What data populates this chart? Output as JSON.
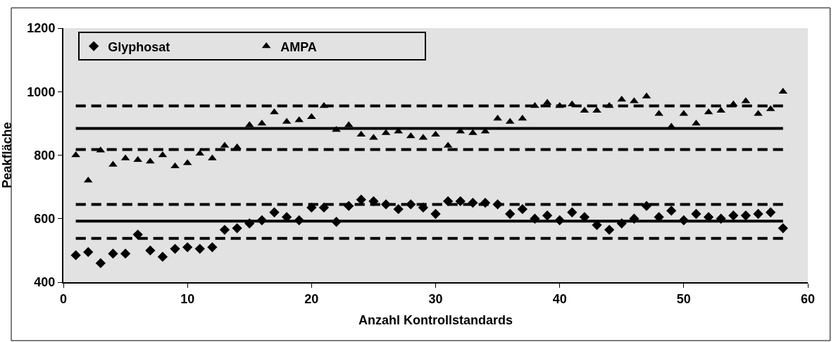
{
  "chart_data": {
    "type": "scatter",
    "xlabel": "Anzahl Kontrollstandards",
    "ylabel": "Peakfläche",
    "x": [
      1,
      2,
      3,
      4,
      5,
      6,
      7,
      8,
      9,
      10,
      11,
      12,
      13,
      14,
      15,
      16,
      17,
      18,
      19,
      20,
      21,
      22,
      23,
      24,
      25,
      26,
      27,
      28,
      29,
      30,
      31,
      32,
      33,
      34,
      35,
      36,
      37,
      38,
      39,
      40,
      41,
      42,
      43,
      44,
      45,
      46,
      47,
      48,
      49,
      50,
      51,
      52,
      53,
      54,
      55,
      56,
      57,
      58
    ],
    "series": [
      {
        "name": "Glyphosat",
        "color": "#000000",
        "marker": "diamond",
        "values": [
          485,
          495,
          460,
          490,
          490,
          550,
          500,
          480,
          505,
          510,
          505,
          510,
          565,
          570,
          585,
          595,
          620,
          605,
          595,
          635,
          635,
          590,
          640,
          660,
          655,
          645,
          630,
          645,
          635,
          615,
          655,
          655,
          650,
          650,
          645,
          615,
          630,
          600,
          610,
          595,
          620,
          605,
          580,
          565,
          585,
          600,
          640,
          605,
          625,
          595,
          615,
          605,
          600,
          610,
          610,
          615,
          620,
          570
        ]
      },
      {
        "name": "AMPA",
        "color": "#000000",
        "marker": "triangle",
        "values": [
          800,
          720,
          815,
          770,
          790,
          785,
          780,
          800,
          765,
          775,
          805,
          790,
          830,
          825,
          895,
          900,
          935,
          905,
          910,
          920,
          955,
          880,
          895,
          865,
          855,
          870,
          875,
          860,
          855,
          865,
          830,
          875,
          870,
          875,
          915,
          905,
          915,
          955,
          965,
          955,
          960,
          940,
          940,
          955,
          975,
          970,
          985,
          930,
          890,
          930,
          900,
          935,
          940,
          960,
          970,
          930,
          945,
          1000
        ]
      },
      {
        "type": "line",
        "color": "#000000",
        "line_style": "solid",
        "values": [
          884,
          884,
          884,
          884,
          884,
          884,
          884,
          884,
          884,
          884,
          884,
          884,
          884,
          884,
          884,
          884,
          884,
          884,
          884,
          884,
          884,
          884,
          884,
          884,
          884,
          884,
          884,
          884,
          884,
          884,
          884,
          884,
          884,
          884,
          884,
          884,
          884,
          884,
          884,
          884,
          884,
          884,
          884,
          884,
          884,
          884,
          884,
          884,
          884,
          884,
          884,
          884,
          884,
          884,
          884,
          884,
          884,
          884
        ]
      },
      {
        "type": "line",
        "color": "#000000",
        "line_style": "dashed",
        "values": [
          955,
          955,
          955,
          955,
          955,
          955,
          955,
          955,
          955,
          955,
          955,
          955,
          955,
          955,
          955,
          955,
          955,
          955,
          955,
          955,
          955,
          955,
          955,
          955,
          955,
          955,
          955,
          955,
          955,
          955,
          955,
          955,
          955,
          955,
          955,
          955,
          955,
          955,
          955,
          955,
          955,
          955,
          955,
          955,
          955,
          955,
          955,
          955,
          955,
          955,
          955,
          955,
          955,
          955,
          955,
          955,
          955,
          955
        ]
      },
      {
        "type": "line",
        "color": "#000000",
        "line_style": "dashed",
        "values": [
          818,
          818,
          818,
          818,
          818,
          818,
          818,
          818,
          818,
          818,
          818,
          818,
          818,
          818,
          818,
          818,
          818,
          818,
          818,
          818,
          818,
          818,
          818,
          818,
          818,
          818,
          818,
          818,
          818,
          818,
          818,
          818,
          818,
          818,
          818,
          818,
          818,
          818,
          818,
          818,
          818,
          818,
          818,
          818,
          818,
          818,
          818,
          818,
          818,
          818,
          818,
          818,
          818,
          818,
          818,
          818,
          818,
          818
        ]
      },
      {
        "type": "line",
        "color": "#000000",
        "line_style": "solid",
        "values": [
          592,
          592,
          592,
          592,
          592,
          592,
          592,
          592,
          592,
          592,
          592,
          592,
          592,
          592,
          592,
          592,
          592,
          592,
          592,
          592,
          592,
          592,
          592,
          592,
          592,
          592,
          592,
          592,
          592,
          592,
          592,
          592,
          592,
          592,
          592,
          592,
          592,
          592,
          592,
          592,
          592,
          592,
          592,
          592,
          592,
          592,
          592,
          592,
          592,
          592,
          592,
          592,
          592,
          592,
          592,
          592,
          592,
          592
        ]
      },
      {
        "type": "line",
        "color": "#000000",
        "line_style": "dashed",
        "values": [
          645,
          645,
          645,
          645,
          645,
          645,
          645,
          645,
          645,
          645,
          645,
          645,
          645,
          645,
          645,
          645,
          645,
          645,
          645,
          645,
          645,
          645,
          645,
          645,
          645,
          645,
          645,
          645,
          645,
          645,
          645,
          645,
          645,
          645,
          645,
          645,
          645,
          645,
          645,
          645,
          645,
          645,
          645,
          645,
          645,
          645,
          645,
          645,
          645,
          645,
          645,
          645,
          645,
          645,
          645,
          645,
          645,
          645
        ]
      },
      {
        "type": "line",
        "color": "#000000",
        "line_style": "dashed",
        "values": [
          538,
          538,
          538,
          538,
          538,
          538,
          538,
          538,
          538,
          538,
          538,
          538,
          538,
          538,
          538,
          538,
          538,
          538,
          538,
          538,
          538,
          538,
          538,
          538,
          538,
          538,
          538,
          538,
          538,
          538,
          538,
          538,
          538,
          538,
          538,
          538,
          538,
          538,
          538,
          538,
          538,
          538,
          538,
          538,
          538,
          538,
          538,
          538,
          538,
          538,
          538,
          538,
          538,
          538,
          538,
          538,
          538,
          538
        ]
      }
    ],
    "xlim": [
      0,
      60
    ],
    "xticks": [
      0,
      10,
      20,
      30,
      40,
      50,
      60
    ],
    "ylim": [
      400,
      1200
    ],
    "yticks": [
      400,
      600,
      800,
      1000,
      1200
    ],
    "grid": false,
    "legend": "top left"
  }
}
